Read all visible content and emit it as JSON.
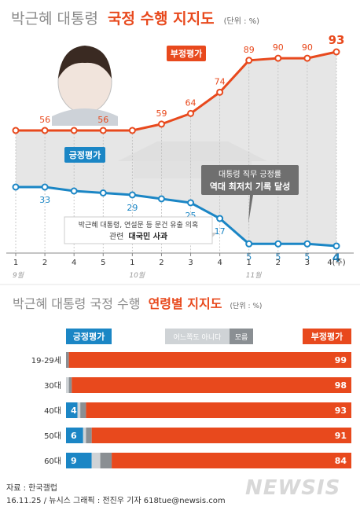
{
  "chart_data": [
    {
      "type": "line",
      "title_prefix": "박근혜 대통령",
      "title_main": "국정 수행 지지도",
      "unit_note": "(단위 : %)",
      "x": [
        "1",
        "2",
        "4",
        "5",
        "1",
        "2",
        "3",
        "4",
        "1",
        "2",
        "3",
        "4(주)"
      ],
      "month_labels": [
        {
          "label": "9월",
          "at": 0
        },
        {
          "label": "10월",
          "at": 4
        },
        {
          "label": "11월",
          "at": 8
        }
      ],
      "ylim": [
        0,
        100
      ],
      "series": [
        {
          "name": "부정평가",
          "color": "#e8491d",
          "values": [
            56,
            56,
            56,
            56,
            56,
            59,
            64,
            74,
            89,
            90,
            90,
            93
          ],
          "labels": [
            "",
            "56",
            "",
            "56",
            "",
            "59",
            "64",
            "74",
            "89",
            "90",
            "90",
            "93"
          ]
        },
        {
          "name": "긍정평가",
          "color": "#1b86c5",
          "values": [
            33,
            33,
            31,
            30,
            29,
            27,
            25,
            17,
            5,
            5,
            5,
            4
          ],
          "labels": [
            "",
            "33",
            "",
            "",
            "29",
            "",
            "25",
            "17",
            "5",
            "5",
            "5",
            "4"
          ]
        }
      ],
      "annotations": {
        "a1_line1": "대통령 직무 긍정률",
        "a1_line2": "역대 최저치 기록 달성",
        "a2_line1": "박근혜 대통령, 연설문 등 문건 유출 의혹",
        "a2_line2_prefix": "관련",
        "a2_line2_bold": "대국민 사과"
      }
    },
    {
      "type": "bar",
      "stacked": true,
      "title_prefix": "박근혜 대통령 국정 수행",
      "title_main": "연령별 지지도",
      "unit_note": "(단위 : %)",
      "categories": [
        "19-29세",
        "30대",
        "40대",
        "50대",
        "60대"
      ],
      "legend": {
        "positive": "긍정평가",
        "neutral": "어느쪽도 아니다",
        "unknown": "모름",
        "negative": "부정평가"
      },
      "series": [
        {
          "name": "긍정평가",
          "color": "#1b86c5",
          "values": [
            0,
            0,
            4,
            6,
            9
          ],
          "labels": [
            "",
            "",
            "4",
            "6",
            "9"
          ]
        },
        {
          "name": "어느쪽도 아니다",
          "color": "#cfd3d6",
          "values": [
            0,
            1,
            1,
            1,
            3
          ],
          "labels": [
            "",
            "",
            "",
            "",
            ""
          ]
        },
        {
          "name": "모름",
          "color": "#8a8f93",
          "values": [
            1,
            1,
            2,
            2,
            4
          ],
          "labels": [
            "",
            "",
            "",
            "",
            ""
          ]
        },
        {
          "name": "부정평가",
          "color": "#e8491d",
          "values": [
            99,
            98,
            93,
            91,
            84
          ],
          "labels": [
            "99",
            "98",
            "93",
            "91",
            "84"
          ]
        }
      ]
    }
  ],
  "footer": {
    "source": "자료 : 한국갤럽",
    "credit": "16.11.25 / 뉴시스 그래픽 : 전진우 기자 618tue@newsis.com",
    "logo": "NEWSIS"
  }
}
